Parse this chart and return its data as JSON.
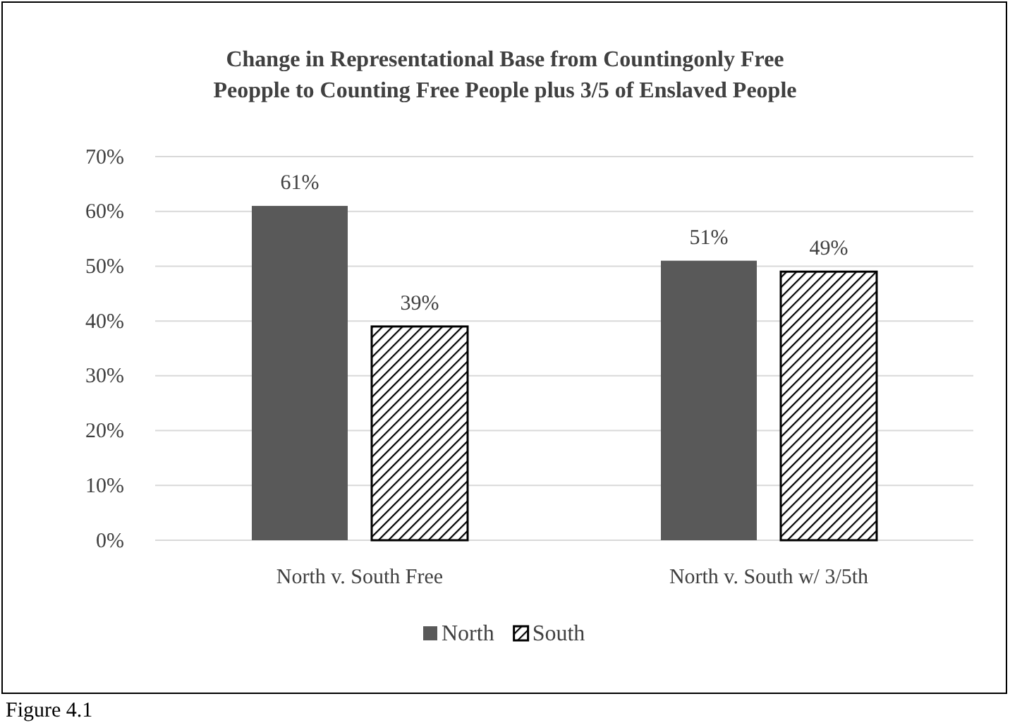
{
  "chart_data": {
    "type": "bar",
    "title": "Change in Representational Base from Countingonly Free\nPeopple to Counting Free People plus 3/5 of Enslaved People",
    "categories": [
      "North v. South Free",
      "North v. South w/ 3/5th"
    ],
    "series": [
      {
        "name": "North",
        "color": "#595959",
        "values": [
          61,
          51
        ],
        "value_labels": [
          "61%",
          "51%"
        ]
      },
      {
        "name": "South",
        "color": "#000000",
        "values": [
          39,
          49
        ],
        "value_labels": [
          "39%",
          "49%"
        ]
      }
    ],
    "ylim": [
      0,
      70
    ],
    "yticks": [
      {
        "value": 0,
        "label": "0%"
      },
      {
        "value": 10,
        "label": "10%"
      },
      {
        "value": 20,
        "label": "20%"
      },
      {
        "value": 30,
        "label": "30%"
      },
      {
        "value": 40,
        "label": "40%"
      },
      {
        "value": 50,
        "label": "50%"
      },
      {
        "value": 60,
        "label": "60%"
      },
      {
        "value": 70,
        "label": "70%"
      }
    ],
    "grid": "y",
    "legend": "bottom",
    "annotations": [
      "Figure 4.1"
    ]
  }
}
